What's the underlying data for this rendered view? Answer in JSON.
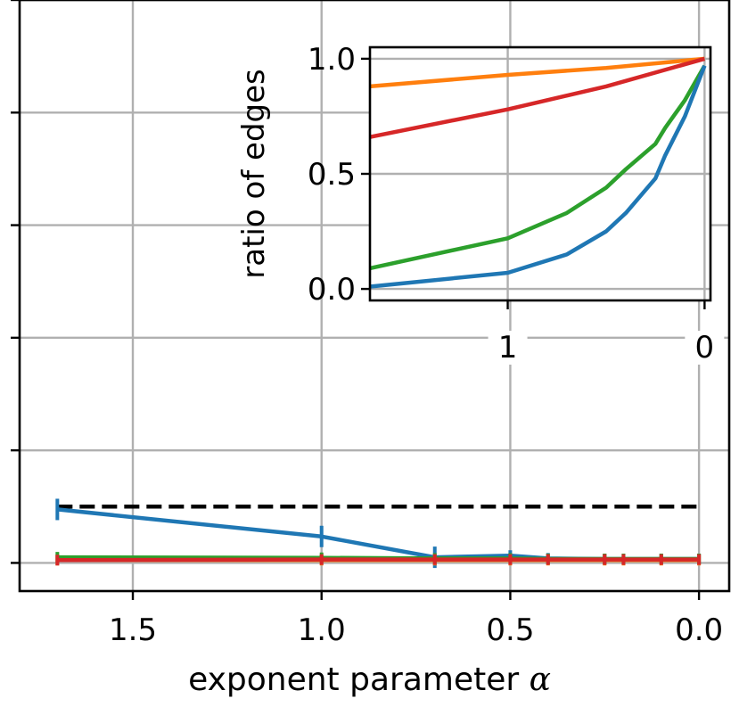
{
  "chart_data": [
    {
      "type": "line",
      "title": "",
      "xlabel_text": "exponent parameter ",
      "xlabel_symbol": "α",
      "ylabel": "",
      "xlim": [
        1.8,
        -0.08
      ],
      "ylim": [
        -0.05,
        1.0
      ],
      "x_ticks": [
        1.5,
        1.0,
        0.5,
        0.0
      ],
      "x_tick_labels": [
        "1.5",
        "1.0",
        "0.5",
        "0.0"
      ],
      "y_ticks": [
        0.0,
        0.2,
        0.4,
        0.6,
        0.8,
        1.0
      ],
      "grid": true,
      "reference_line": {
        "style": "dashed",
        "color": "#000000",
        "y": 0.1,
        "x": [
          1.7,
          0.0
        ]
      },
      "series": [
        {
          "color": "#1f77b4",
          "x": [
            1.7,
            1.0,
            0.7,
            0.5,
            0.4,
            0.25,
            0.2,
            0.1,
            0.0
          ],
          "values": [
            0.095,
            0.047,
            0.01,
            0.013,
            0.008,
            0.007,
            0.007,
            0.007,
            0.007
          ]
        },
        {
          "color": "#ff7f0e",
          "x": [
            1.7,
            1.0,
            0.7,
            0.5,
            0.4,
            0.25,
            0.2,
            0.1,
            0.0
          ],
          "values": [
            0.005,
            0.005,
            0.005,
            0.005,
            0.005,
            0.005,
            0.005,
            0.005,
            0.005
          ]
        },
        {
          "color": "#2ca02c",
          "x": [
            1.7,
            1.0,
            0.7,
            0.5,
            0.4,
            0.25,
            0.2,
            0.1,
            0.0
          ],
          "values": [
            0.01,
            0.009,
            0.008,
            0.008,
            0.007,
            0.007,
            0.007,
            0.007,
            0.007
          ]
        },
        {
          "color": "#d62728",
          "x": [
            1.7,
            1.0,
            0.7,
            0.5,
            0.4,
            0.25,
            0.2,
            0.1,
            0.0
          ],
          "values": [
            0.005,
            0.006,
            0.006,
            0.006,
            0.006,
            0.006,
            0.006,
            0.006,
            0.006
          ]
        }
      ]
    },
    {
      "type": "line",
      "title": "",
      "xlabel": "",
      "ylabel": "ratio of edges",
      "xlim": [
        1.7,
        -0.03
      ],
      "ylim": [
        -0.05,
        1.05
      ],
      "x_ticks": [
        1,
        0
      ],
      "x_tick_labels": [
        "1",
        "0"
      ],
      "y_ticks": [
        0.0,
        0.5,
        1.0
      ],
      "y_tick_labels": [
        "0.0",
        "0.5",
        "1.0"
      ],
      "grid": true,
      "series": [
        {
          "color": "#ff7f0e",
          "x": [
            1.7,
            1.0,
            0.5,
            0.0
          ],
          "values": [
            0.88,
            0.93,
            0.96,
            1.0
          ]
        },
        {
          "color": "#d62728",
          "x": [
            1.7,
            1.0,
            0.5,
            0.0
          ],
          "values": [
            0.66,
            0.78,
            0.88,
            1.0
          ]
        },
        {
          "color": "#2ca02c",
          "x": [
            1.7,
            1.0,
            0.7,
            0.5,
            0.4,
            0.25,
            0.2,
            0.1,
            0.0
          ],
          "values": [
            0.09,
            0.22,
            0.33,
            0.44,
            0.52,
            0.63,
            0.7,
            0.82,
            0.97
          ]
        },
        {
          "color": "#1f77b4",
          "x": [
            1.7,
            1.0,
            0.7,
            0.5,
            0.4,
            0.25,
            0.2,
            0.1,
            0.0
          ],
          "values": [
            0.01,
            0.07,
            0.15,
            0.25,
            0.33,
            0.48,
            0.58,
            0.75,
            0.97
          ]
        }
      ]
    }
  ]
}
